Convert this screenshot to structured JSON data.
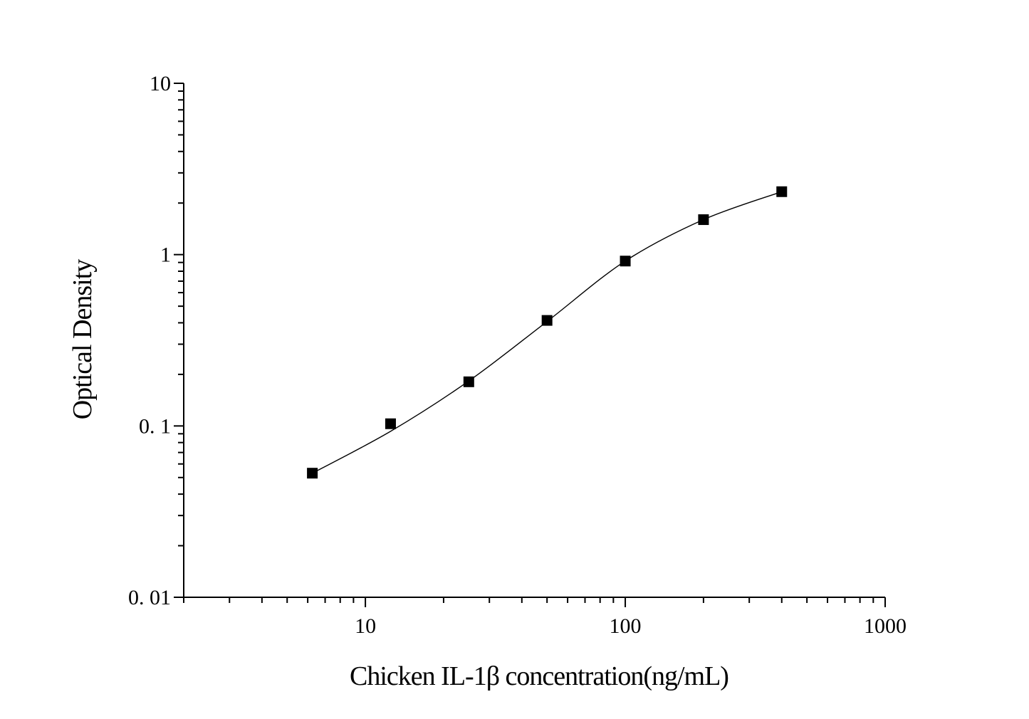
{
  "chart_data": {
    "type": "scatter",
    "xlabel": "Chicken  IL-1β   concentration(ng/mL)",
    "ylabel": "Optical Density",
    "xscale": "log",
    "yscale": "log",
    "xlim": [
      2,
      1000
    ],
    "ylim": [
      0.01,
      10
    ],
    "xticks": [
      {
        "value": 10,
        "label": "10"
      },
      {
        "value": 100,
        "label": "100"
      },
      {
        "value": 1000,
        "label": "1000"
      }
    ],
    "yticks": [
      {
        "value": 10,
        "label": "10"
      },
      {
        "value": 1,
        "label": "1"
      },
      {
        "value": 0.1,
        "label": "0. 1"
      },
      {
        "value": 0.01,
        "label": "0. 01"
      }
    ],
    "grid": false,
    "series": [
      {
        "marker": "square",
        "color": "#000000",
        "x": [
          6.25,
          12.5,
          25,
          50,
          100,
          200,
          400
        ],
        "y": [
          0.053,
          0.103,
          0.181,
          0.413,
          0.917,
          1.6,
          2.33
        ]
      }
    ],
    "fit_curve": {
      "color": "#000000",
      "x": [
        6.25,
        12.5,
        25,
        50,
        100,
        200,
        400
      ],
      "y": [
        0.053,
        0.093,
        0.183,
        0.407,
        0.917,
        1.6,
        2.33
      ]
    }
  }
}
